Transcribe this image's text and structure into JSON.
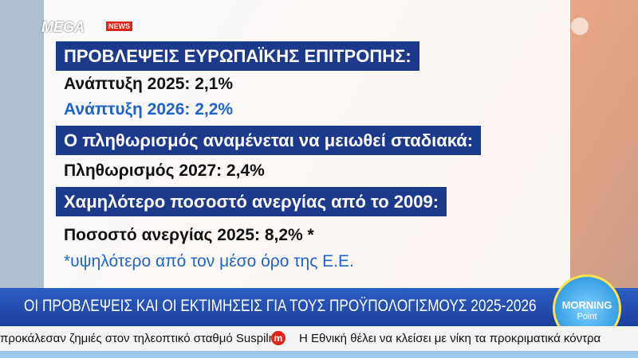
{
  "logo": {
    "brand": "MEGA",
    "tag": "NEWS"
  },
  "panel": {
    "heading_1": "ΠΡΟΒΛΕΨΕΙΣ ΕΥΡΩΠΑΪΚΗΣ ΕΠΙΤΡΟΠΗΣ:",
    "line_1": "Ανάπτυξη 2025: 2,1%",
    "line_2": "Ανάπτυξη 2026: 2,2%",
    "heading_2": "Ο πληθωρισμός αναμένεται να μειωθεί σταδιακά:",
    "line_3": "Πληθωρισμός 2027: 2,4%",
    "heading_3": "Χαμηλότερο ποσοστό ανεργίας από το 2009:",
    "line_4": "Ποσοστό ανεργίας 2025: 8,2% *",
    "footnote": "*υψηλότερο από τον μέσο όρο της Ε.Ε."
  },
  "banner": "ΟΙ ΠΡΟΒΛΕΨΕΙΣ ΚΑΙ ΟΙ ΕΚΤΙΜΗΣΕΙΣ ΓΙΑ ΤΟΥΣ ΠΡΟΫΠΟΛΟΓΙΣΜΟΥΣ 2025-2026",
  "show_logo": {
    "title": "MORNING",
    "subtitle": "Point"
  },
  "ticker": {
    "item_1": "προκάλεσαν ζημιές στον τηλεοπτικό σταθμό Suspilne",
    "separator": "m",
    "item_2": "Η Εθνική θέλει να κλείσει με νίκη τα προκριματικά κόντρα"
  }
}
